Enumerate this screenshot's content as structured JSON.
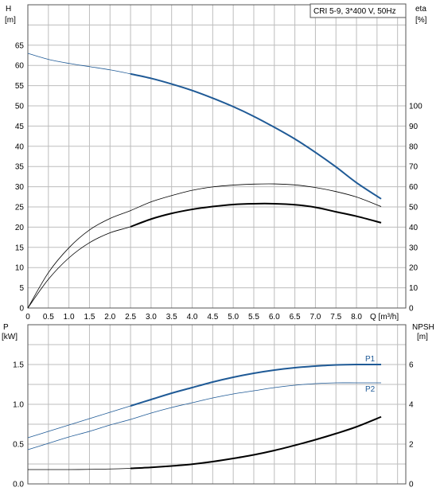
{
  "chart_data": [
    {
      "type": "line",
      "title": "CRI 5-9, 3*400 V, 50Hz",
      "ylabel_left": "H",
      "ylabel_left_unit": "[m]",
      "ylabel_right": "eta",
      "ylabel_right_unit": "[%]",
      "xlabel": "Q [m³/h]",
      "xlim": [
        0,
        9.2
      ],
      "ylim_left": [
        0,
        75
      ],
      "ylim_right": [
        0,
        150
      ],
      "x_ticks": [
        "0",
        "0.5",
        "1.0",
        "1.5",
        "2.0",
        "2.5",
        "3.0",
        "3.5",
        "4.0",
        "4.5",
        "5.0",
        "5.5",
        "6.0",
        "6.5",
        "7.0",
        "7.5",
        "8.0"
      ],
      "x_tick_values": [
        0,
        0.5,
        1.0,
        1.5,
        2.0,
        2.5,
        3.0,
        3.5,
        4.0,
        4.5,
        5.0,
        5.5,
        6.0,
        6.5,
        7.0,
        7.5,
        8.0
      ],
      "left_ticks": [
        "0",
        "5",
        "10",
        "15",
        "20",
        "25",
        "30",
        "35",
        "40",
        "45",
        "50",
        "55",
        "60",
        "65"
      ],
      "left_tick_values": [
        0,
        5,
        10,
        15,
        20,
        25,
        30,
        35,
        40,
        45,
        50,
        55,
        60,
        65
      ],
      "right_ticks": [
        "0",
        "10",
        "20",
        "30",
        "40",
        "50",
        "60",
        "70",
        "80",
        "90",
        "100"
      ],
      "right_tick_values": [
        0,
        10,
        20,
        30,
        40,
        50,
        60,
        70,
        80,
        90,
        100
      ],
      "grid": true,
      "series": [
        {
          "axis": "left",
          "color": "#1f5a96",
          "width_thin": 0.8,
          "width_bold": 2.0,
          "bold_from": 2.5,
          "x": [
            0,
            0.5,
            1.0,
            1.5,
            2.0,
            2.5,
            3.0,
            3.5,
            4.0,
            4.5,
            5.0,
            5.5,
            6.0,
            6.5,
            7.0,
            7.5,
            8.0,
            8.6
          ],
          "y": [
            63.0,
            61.5,
            60.5,
            59.7,
            58.9,
            57.9,
            56.8,
            55.4,
            53.8,
            51.9,
            49.8,
            47.4,
            44.7,
            41.8,
            38.5,
            34.9,
            31.0,
            27.0
          ]
        },
        {
          "axis": "right",
          "color": "#000000",
          "width_thin": 0.8,
          "width_bold": 2.0,
          "bold_from": 2.5,
          "x": [
            0,
            0.5,
            1.0,
            1.5,
            2.0,
            2.5,
            3.0,
            3.5,
            4.0,
            4.5,
            5.0,
            5.5,
            6.0,
            6.5,
            7.0,
            7.5,
            8.0,
            8.6
          ],
          "y": [
            0,
            14.2,
            24.8,
            32.3,
            37.2,
            40.2,
            44.0,
            46.8,
            48.8,
            50.2,
            51.2,
            51.6,
            51.6,
            51.1,
            49.8,
            47.6,
            45.4,
            42.2
          ]
        },
        {
          "axis": "right",
          "color": "#000000",
          "width_thin": 0.8,
          "width_bold": 0.8,
          "bold_from": 99,
          "x": [
            0,
            0.5,
            1.0,
            1.5,
            2.0,
            2.5,
            3.0,
            3.5,
            4.0,
            4.5,
            5.0,
            5.5,
            6.0,
            6.5,
            7.0,
            7.5,
            8.0,
            8.6
          ],
          "y": [
            0,
            17.5,
            29.8,
            38.6,
            44.3,
            48.2,
            52.5,
            55.6,
            58.2,
            59.9,
            60.8,
            61.3,
            61.4,
            60.9,
            59.6,
            57.6,
            54.9,
            50.2
          ]
        }
      ]
    },
    {
      "type": "line",
      "ylabel_left": "P",
      "ylabel_left_unit": "[kW]",
      "ylabel_right": "NPSH",
      "ylabel_right_unit": "[m]",
      "xlim": [
        0,
        9.2
      ],
      "ylim_left": [
        0,
        2.0
      ],
      "ylim_right": [
        0,
        8
      ],
      "left_ticks": [
        "0.0",
        "0.5",
        "1.0",
        "1.5"
      ],
      "left_tick_values": [
        0,
        0.5,
        1.0,
        1.5
      ],
      "right_ticks": [
        "0",
        "2",
        "4",
        "6"
      ],
      "right_tick_values": [
        0,
        2,
        4,
        6
      ],
      "grid": true,
      "series": [
        {
          "name": "P1",
          "axis": "left",
          "color": "#1f5a96",
          "width_thin": 0.8,
          "width_bold": 2.0,
          "bold_from": 2.5,
          "x": [
            0,
            0.5,
            1.0,
            1.5,
            2.0,
            2.5,
            3.0,
            3.5,
            4.0,
            4.5,
            5.0,
            5.5,
            6.0,
            6.5,
            7.0,
            7.5,
            8.0,
            8.6
          ],
          "y": [
            0.58,
            0.66,
            0.74,
            0.82,
            0.9,
            0.98,
            1.06,
            1.14,
            1.21,
            1.28,
            1.34,
            1.39,
            1.43,
            1.46,
            1.48,
            1.495,
            1.5,
            1.5
          ]
        },
        {
          "name": "P2",
          "axis": "left",
          "color": "#1f5a96",
          "width_thin": 0.8,
          "width_bold": 0.8,
          "bold_from": 99,
          "x": [
            0,
            0.5,
            1.0,
            1.5,
            2.0,
            2.5,
            3.0,
            3.5,
            4.0,
            4.5,
            5.0,
            5.5,
            6.0,
            6.5,
            7.0,
            7.5,
            8.0,
            8.6
          ],
          "y": [
            0.43,
            0.51,
            0.59,
            0.66,
            0.74,
            0.81,
            0.89,
            0.96,
            1.02,
            1.08,
            1.13,
            1.17,
            1.21,
            1.24,
            1.26,
            1.27,
            1.27,
            1.27
          ]
        },
        {
          "axis": "right",
          "color": "#000000",
          "width_thin": 0.8,
          "width_bold": 2.0,
          "bold_from": 2.5,
          "x": [
            0,
            0.5,
            1.0,
            1.5,
            2.0,
            2.5,
            3.0,
            3.5,
            4.0,
            4.5,
            5.0,
            5.5,
            6.0,
            6.5,
            7.0,
            7.5,
            8.0,
            8.6
          ],
          "y": [
            0.72,
            0.72,
            0.72,
            0.73,
            0.75,
            0.78,
            0.83,
            0.9,
            0.99,
            1.12,
            1.28,
            1.46,
            1.68,
            1.94,
            2.22,
            2.53,
            2.87,
            3.37
          ]
        }
      ]
    }
  ]
}
